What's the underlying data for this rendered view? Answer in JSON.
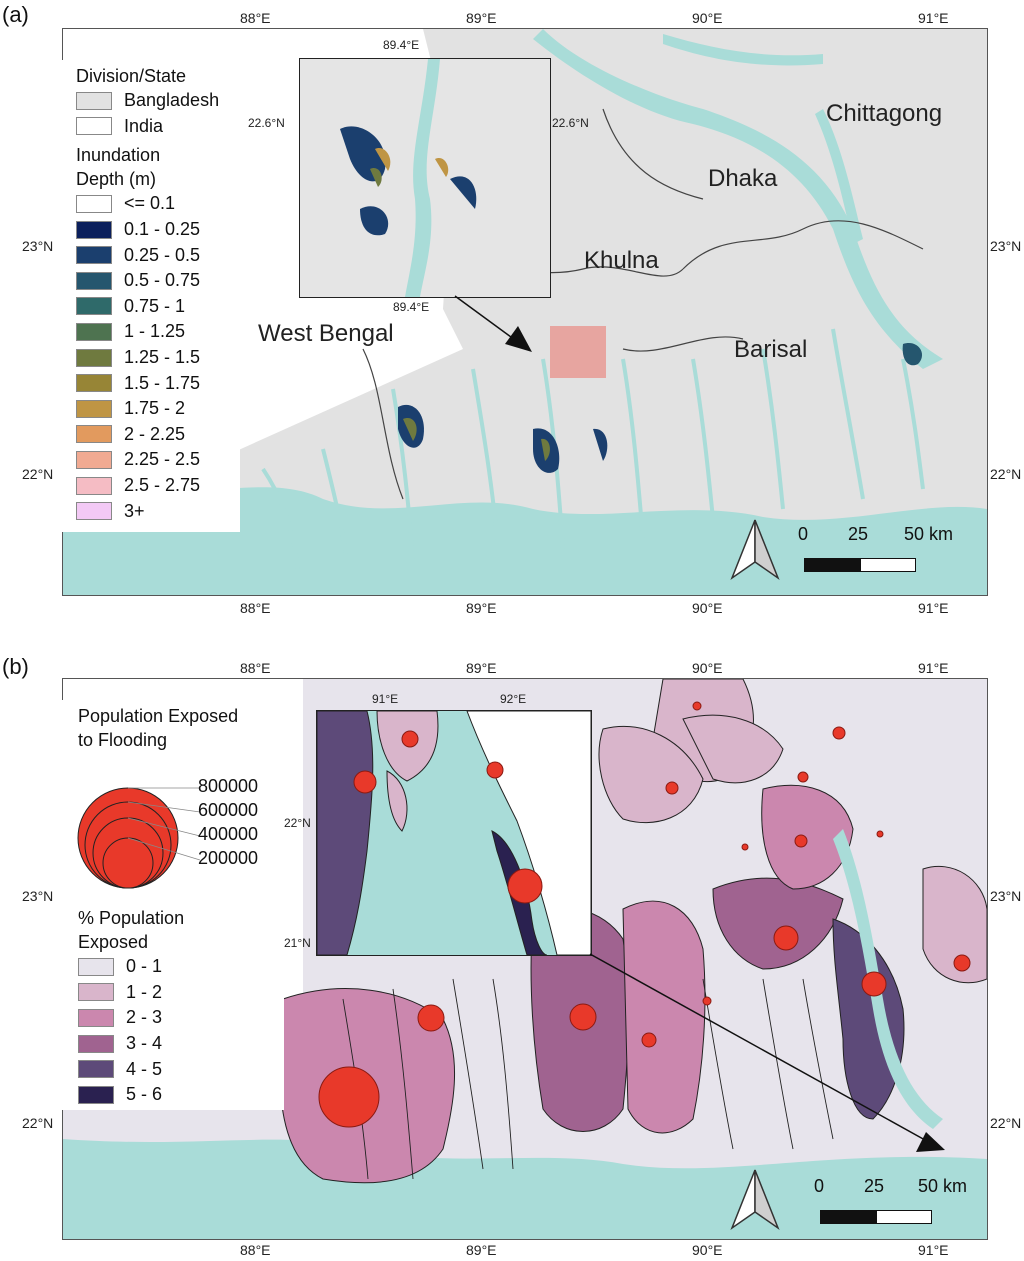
{
  "panel_a": {
    "label": "(a)",
    "x_ticks_top": [
      "88°E",
      "89°E",
      "90°E",
      "91°E"
    ],
    "x_ticks_bottom": [
      "88°E",
      "89°E",
      "90°E",
      "91°E"
    ],
    "y_ticks_left": [
      "23°N",
      "22°N"
    ],
    "y_ticks_right": [
      "23°N",
      "22°N"
    ],
    "legend": {
      "division_title": "Division/State",
      "division_items": [
        {
          "label": "Bangladesh",
          "color": "#e2e2e2"
        },
        {
          "label": "India",
          "color": "#ffffff"
        }
      ],
      "depth_title_1": "Inundation",
      "depth_title_2": "Depth (m)",
      "depth_items": [
        {
          "label": "<= 0.1",
          "color": "#ffffff"
        },
        {
          "label": "0.1 - 0.25",
          "color": "#0b1f5c"
        },
        {
          "label": "0.25 - 0.5",
          "color": "#1b3f6e"
        },
        {
          "label": "0.5 - 0.75",
          "color": "#25566e"
        },
        {
          "label": "0.75 - 1",
          "color": "#2f6a6a"
        },
        {
          "label": "1 - 1.25",
          "color": "#4e7350"
        },
        {
          "label": "1.25 - 1.5",
          "color": "#6f7a3f"
        },
        {
          "label": "1.5 - 1.75",
          "color": "#978536"
        },
        {
          "label": "1.75 - 2",
          "color": "#bf9544"
        },
        {
          "label": "2 - 2.25",
          "color": "#e29a5e"
        },
        {
          "label": "2.25 - 2.5",
          "color": "#f1aa92"
        },
        {
          "label": "2.5 - 2.75",
          "color": "#f5bcc4"
        },
        {
          "label": "3+",
          "color": "#f3c9f5"
        }
      ]
    },
    "places": {
      "chittagong": "Chittagong",
      "dhaka": "Dhaka",
      "khulna": "Khulna",
      "barisal": "Barisal",
      "west_bengal": "West Bengal"
    },
    "inset": {
      "top_tick": "89.4°E",
      "bottom_tick": "89.4°E",
      "left_tick": "22.6°N",
      "right_tick": "22.6°N"
    },
    "scale": {
      "n0": "0",
      "n1": "25",
      "n2": "50 km"
    }
  },
  "panel_b": {
    "label": "(b)",
    "x_ticks_top": [
      "88°E",
      "89°E",
      "90°E",
      "91°E"
    ],
    "x_ticks_bottom": [
      "88°E",
      "89°E",
      "90°E",
      "91°E"
    ],
    "y_ticks_left": [
      "23°N",
      "22°N"
    ],
    "y_ticks_right": [
      "23°N",
      "22°N"
    ],
    "legend": {
      "pop_title_1": "Population Exposed",
      "pop_title_2": "to Flooding",
      "bubble_values": [
        "800000",
        "600000",
        "400000",
        "200000"
      ],
      "pct_title_1": "% Population",
      "pct_title_2": "Exposed",
      "pct_items": [
        {
          "label": "0 - 1",
          "color": "#e7e4ec"
        },
        {
          "label": "1 - 2",
          "color": "#d9b5cb"
        },
        {
          "label": "2 - 3",
          "color": "#cb87ae"
        },
        {
          "label": "3 - 4",
          "color": "#a06390"
        },
        {
          "label": "4 - 5",
          "color": "#5d4a79"
        },
        {
          "label": "5 - 6",
          "color": "#2a2150"
        }
      ]
    },
    "inset": {
      "top_ticks": [
        "91°E",
        "92°E"
      ],
      "left_ticks": [
        "22°N",
        "21°N"
      ]
    },
    "scale": {
      "n0": "0",
      "n1": "25",
      "n2": "50 km"
    }
  },
  "colors": {
    "water": "#a9dcd8",
    "bangladesh": "#e2e2e2",
    "india": "#ffffff",
    "bubble": "#e8392a"
  }
}
